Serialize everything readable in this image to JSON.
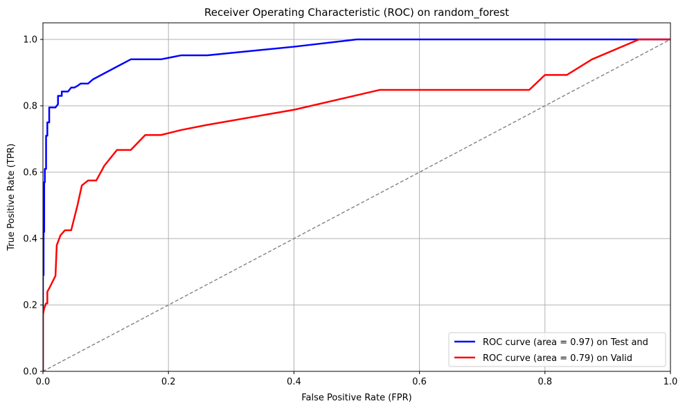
{
  "chart_data": {
    "type": "line",
    "title": "Receiver Operating Characteristic (ROC) on random_forest",
    "xlabel": "False Positive Rate (FPR)",
    "ylabel": "True Positive Rate (TPR)",
    "xlim": [
      0.0,
      1.0
    ],
    "ylim": [
      0.0,
      1.05
    ],
    "xticks": [
      0.0,
      0.2,
      0.4,
      0.6,
      0.8,
      1.0
    ],
    "yticks": [
      0.0,
      0.2,
      0.4,
      0.6,
      0.8,
      1.0
    ],
    "xtick_labels": [
      "0.0",
      "0.2",
      "0.4",
      "0.6",
      "0.8",
      "1.0"
    ],
    "ytick_labels": [
      "0.0",
      "0.2",
      "0.4",
      "0.6",
      "0.8",
      "1.0"
    ],
    "grid": true,
    "legend_position": "lower-right",
    "series": [
      {
        "name": "ROC curve (area = 0.97) on Test and",
        "color": "#0000ff",
        "x": [
          0.0,
          0.0,
          0.001,
          0.001,
          0.002,
          0.002,
          0.003,
          0.003,
          0.005,
          0.005,
          0.007,
          0.007,
          0.01,
          0.01,
          0.013,
          0.02,
          0.024,
          0.024,
          0.03,
          0.03,
          0.04,
          0.045,
          0.05,
          0.055,
          0.06,
          0.065,
          0.072,
          0.08,
          0.1,
          0.12,
          0.14,
          0.188,
          0.22,
          0.262,
          0.4,
          0.5,
          1.0
        ],
        "y": [
          0.0,
          0.29,
          0.29,
          0.42,
          0.42,
          0.57,
          0.57,
          0.61,
          0.61,
          0.71,
          0.71,
          0.75,
          0.75,
          0.795,
          0.795,
          0.795,
          0.805,
          0.83,
          0.83,
          0.843,
          0.843,
          0.855,
          0.855,
          0.86,
          0.867,
          0.867,
          0.867,
          0.88,
          0.9,
          0.92,
          0.94,
          0.94,
          0.952,
          0.952,
          0.978,
          1.0,
          1.0
        ]
      },
      {
        "name": "ROC curve (area = 0.79) on Valid",
        "color": "#ff0000",
        "x": [
          0.0,
          0.0,
          0.002,
          0.005,
          0.007,
          0.007,
          0.01,
          0.02,
          0.022,
          0.028,
          0.035,
          0.04,
          0.045,
          0.055,
          0.062,
          0.072,
          0.085,
          0.098,
          0.118,
          0.14,
          0.163,
          0.188,
          0.22,
          0.26,
          0.4,
          0.537,
          0.775,
          0.8,
          0.835,
          0.875,
          0.95,
          1.0
        ],
        "y": [
          0.0,
          0.17,
          0.19,
          0.205,
          0.205,
          0.24,
          0.25,
          0.288,
          0.38,
          0.41,
          0.425,
          0.425,
          0.425,
          0.5,
          0.56,
          0.575,
          0.575,
          0.62,
          0.667,
          0.667,
          0.712,
          0.712,
          0.727,
          0.742,
          0.788,
          0.848,
          0.848,
          0.893,
          0.893,
          0.94,
          1.0,
          1.0
        ]
      },
      {
        "name": "",
        "color": "#808080",
        "dashed": true,
        "x": [
          0.0,
          1.0
        ],
        "y": [
          0.0,
          1.0
        ]
      }
    ]
  }
}
